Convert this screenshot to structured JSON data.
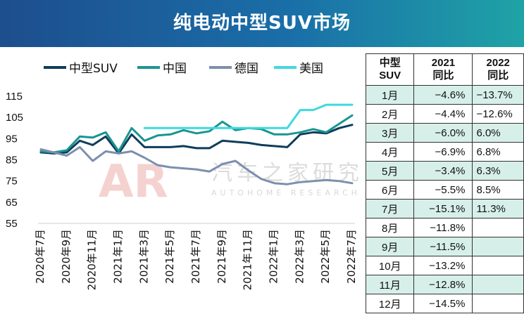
{
  "title": "纯电动中型SUV市场",
  "watermark": {
    "cn": "汽车之家研究院",
    "en": "AUTOHOME RESEARCH INSTITUTE",
    "logo": "AR"
  },
  "colors": {
    "banner_start": "#1d4e8d",
    "banner_end": "#1fa3a6",
    "row_shade": "#d7efe9"
  },
  "chart_data": {
    "type": "line",
    "title": "",
    "xlabel": "",
    "ylabel": "",
    "legend_position": "top-left",
    "ylim": [
      55,
      115
    ],
    "yticks": [
      55,
      65,
      75,
      85,
      95,
      105,
      115
    ],
    "xticks": [
      "2020年7月",
      "2020年9月",
      "2020年11月",
      "2021年1月",
      "2021年3月",
      "2021年5月",
      "2021年7月",
      "2021年9月",
      "2021年11月",
      "2022年1月",
      "2022年3月",
      "2022年5月",
      "2022年7月"
    ],
    "x": [
      "2020年7月",
      "2020年8月",
      "2020年9月",
      "2020年10月",
      "2020年11月",
      "2020年12月",
      "2021年1月",
      "2021年2月",
      "2021年3月",
      "2021年4月",
      "2021年5月",
      "2021年6月",
      "2021年7月",
      "2021年8月",
      "2021年9月",
      "2021年10月",
      "2021年11月",
      "2021年12月",
      "2022年1月",
      "2022年2月",
      "2022年3月",
      "2022年4月",
      "2022年5月",
      "2022年6月",
      "2022年7月"
    ],
    "series": [
      {
        "name": "中型SUV",
        "color": "#0f3d5a",
        "values": [
          88.5,
          88,
          88.5,
          94,
          92,
          96,
          88,
          97,
          91,
          91,
          91,
          91.5,
          90.5,
          90.5,
          94,
          93.5,
          93,
          92,
          91.5,
          91,
          97,
          98,
          97.5,
          100,
          101.5
        ]
      },
      {
        "name": "中国",
        "color": "#1a9592",
        "values": [
          89,
          88.5,
          89.5,
          96,
          95.5,
          98,
          89,
          100,
          94,
          96.5,
          97,
          99,
          97.5,
          98.5,
          103,
          99,
          100,
          99.5,
          97,
          97,
          98,
          99.5,
          98,
          102,
          106
        ]
      },
      {
        "name": "德国",
        "color": "#7c8fae",
        "values": [
          90,
          88.5,
          87,
          91,
          84.5,
          89,
          88,
          89,
          86,
          82.5,
          81.5,
          81,
          80.5,
          79.5,
          83,
          84.5,
          80,
          76,
          74,
          73.5,
          74.5,
          75,
          75.5,
          75,
          74
        ]
      },
      {
        "name": "美国",
        "color": "#3fd9e0",
        "values": [
          null,
          null,
          null,
          null,
          null,
          null,
          null,
          null,
          100,
          100,
          100,
          100,
          100,
          100,
          100,
          100,
          100,
          100,
          100,
          100,
          108.5,
          108.5,
          111,
          111,
          111
        ]
      }
    ]
  },
  "table": {
    "headers": [
      "中型SUV",
      "2021同比",
      "2022同比"
    ],
    "header_lines": [
      [
        "中型",
        "SUV"
      ],
      [
        "2021",
        "同比"
      ],
      [
        "2022",
        "同比"
      ]
    ],
    "rows": [
      {
        "month": "1月",
        "y2021": "−4.6%",
        "y2022": "−13.7%"
      },
      {
        "month": "2月",
        "y2021": "−4.4%",
        "y2022": "−12.6%"
      },
      {
        "month": "3月",
        "y2021": "−6.0%",
        "y2022": "6.0%"
      },
      {
        "month": "4月",
        "y2021": "−6.9%",
        "y2022": "6.8%"
      },
      {
        "month": "5月",
        "y2021": "−3.4%",
        "y2022": "6.3%"
      },
      {
        "month": "6月",
        "y2021": "−5.5%",
        "y2022": "8.5%"
      },
      {
        "month": "7月",
        "y2021": "−15.1%",
        "y2022": "11.3%"
      },
      {
        "month": "8月",
        "y2021": "−11.8%",
        "y2022": ""
      },
      {
        "month": "9月",
        "y2021": "−11.5%",
        "y2022": ""
      },
      {
        "month": "10月",
        "y2021": "−13.2%",
        "y2022": ""
      },
      {
        "month": "11月",
        "y2021": "−12.8%",
        "y2022": ""
      },
      {
        "month": "12月",
        "y2021": "−14.5%",
        "y2022": ""
      }
    ]
  }
}
